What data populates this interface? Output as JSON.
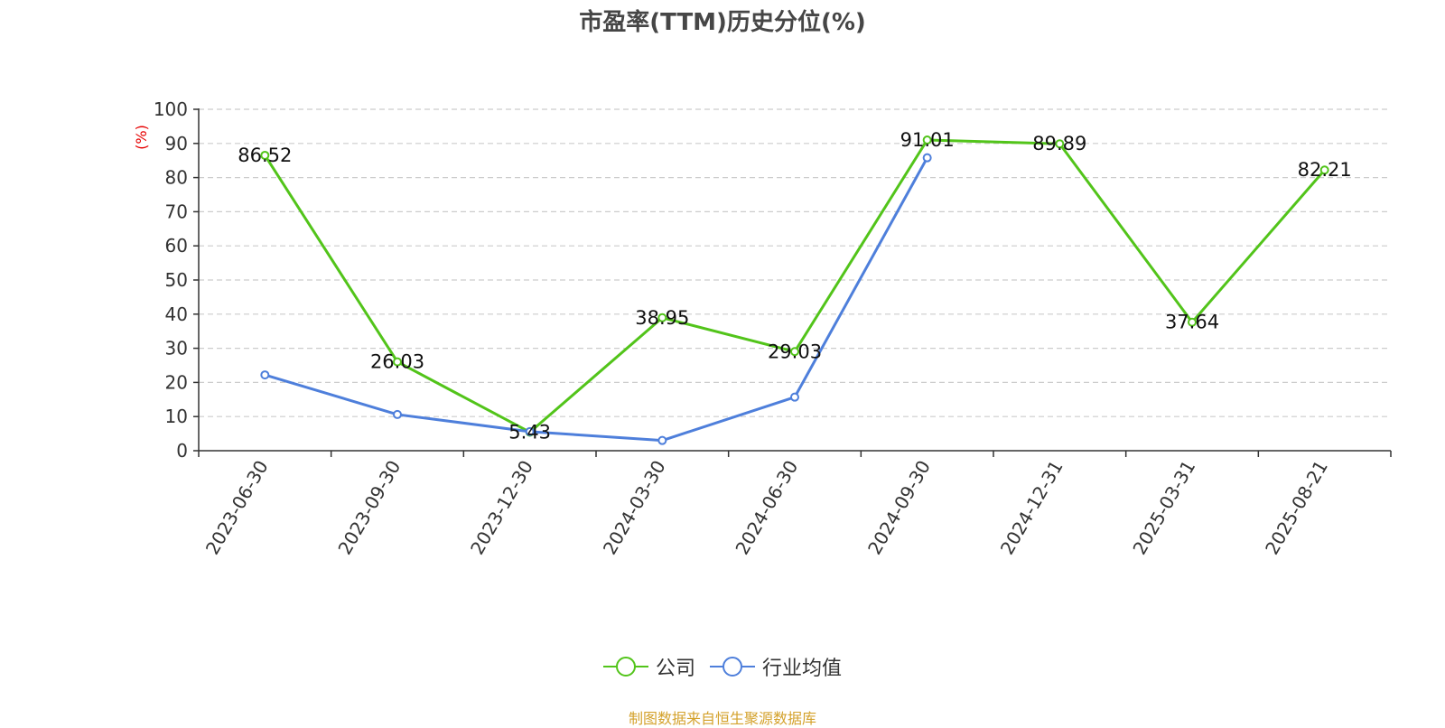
{
  "chart_data": {
    "type": "line",
    "title": "市盈率(TTM)历史分位(%)",
    "ylabel": "(%)",
    "ylim": [
      0,
      100
    ],
    "yticks": [
      0,
      10,
      20,
      30,
      40,
      50,
      60,
      70,
      80,
      90,
      100
    ],
    "grid": true,
    "legend_position": "bottom",
    "categories": [
      "2023-06-30",
      "2023-09-30",
      "2023-12-30",
      "2024-03-30",
      "2024-06-30",
      "2024-09-30",
      "2024-12-31",
      "2025-03-31",
      "2025-08-21"
    ],
    "series": [
      {
        "name": "公司",
        "color": "#52c41a",
        "values": [
          86.52,
          26.03,
          5.43,
          38.95,
          29.03,
          91.01,
          89.89,
          37.64,
          82.21
        ],
        "labels": [
          "86.52",
          "26.03",
          "5.43",
          "38.95",
          "29.03",
          "91.01",
          "89.89",
          "37.64",
          "82.21"
        ]
      },
      {
        "name": "行业均值",
        "color": "#4e7fdb",
        "values": [
          22.2,
          10.6,
          5.6,
          3.0,
          15.7,
          85.8,
          null,
          null,
          null
        ]
      }
    ],
    "source": "制图数据来自恒生聚源数据库"
  }
}
